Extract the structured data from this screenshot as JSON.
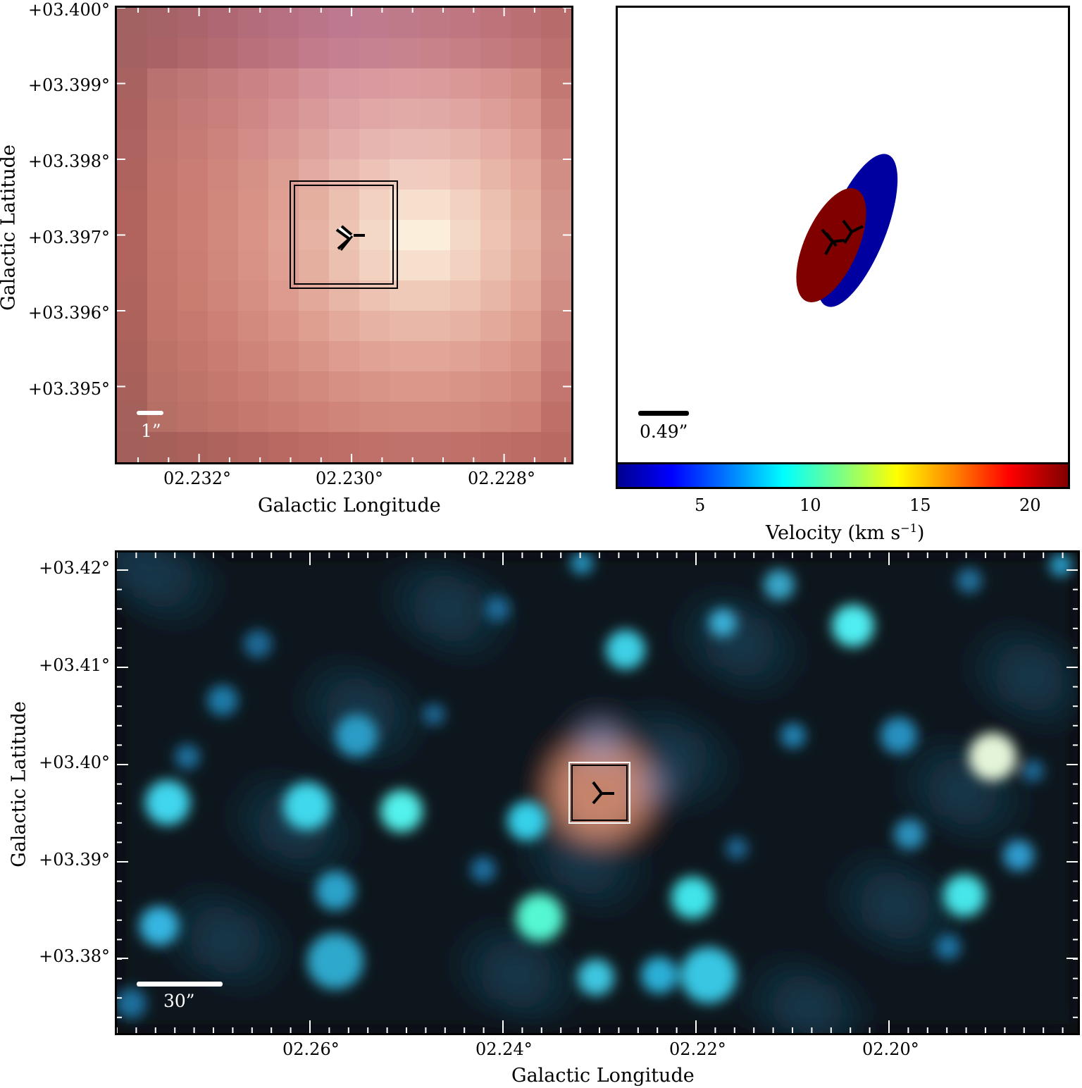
{
  "top_left": {
    "ylabel": "Galactic Latitude",
    "xlabel": "Galactic Longitude",
    "yticks": [
      "+03.400°",
      "+03.399°",
      "+03.398°",
      "+03.397°",
      "+03.396°",
      "+03.395°"
    ],
    "xticks": [
      "02.232°",
      "02.230°",
      "02.228°"
    ],
    "scale_label": "1”",
    "marker_icon": "tri-marker-icon"
  },
  "top_right": {
    "scale_label": "0.49”",
    "colorbar": {
      "label_prefix": "Velocity (km s",
      "label_exp": "−1",
      "label_suffix": ")",
      "ticks": [
        "5",
        "10",
        "15",
        "20"
      ],
      "colormap": "jet",
      "range": [
        2,
        22
      ]
    },
    "ellipses": [
      {
        "color": "#0000a0",
        "name": "blue-ellipse"
      },
      {
        "color": "#800000",
        "name": "red-ellipse"
      }
    ]
  },
  "bottom": {
    "ylabel": "Galactic Latitude",
    "xlabel": "Galactic Longitude",
    "yticks": [
      "+03.42°",
      "+03.41°",
      "+03.40°",
      "+03.39°",
      "+03.38°"
    ],
    "xticks": [
      "02.26°",
      "02.24°",
      "02.22°",
      "02.20°"
    ],
    "scale_label": "30”",
    "marker_icon": "tri-marker-icon"
  }
}
